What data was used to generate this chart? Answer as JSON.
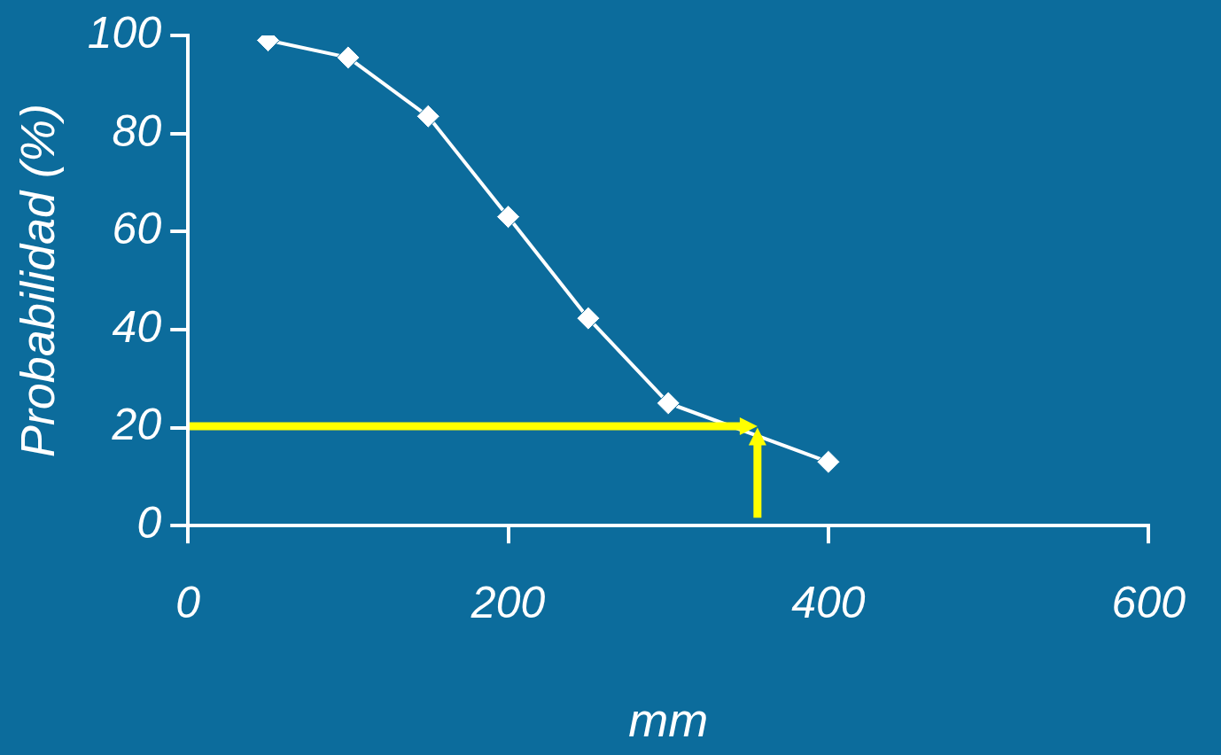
{
  "chart_data": {
    "type": "line",
    "xlabel": "mm",
    "ylabel": "Probabilidad (%)",
    "x": [
      50,
      100,
      150,
      200,
      250,
      300,
      400
    ],
    "series": [
      {
        "color": "#ffffff",
        "values": [
          99,
          95.5,
          83.5,
          63,
          42.3,
          25,
          13
        ]
      }
    ],
    "xlim": [
      0,
      600
    ],
    "xticks": [
      0,
      200,
      400,
      600
    ],
    "ylim": [
      0,
      100
    ],
    "yticks": [
      0,
      20,
      40,
      60,
      80,
      100
    ],
    "grid": false,
    "legend": false,
    "marker": "diamond",
    "line_style": "solid"
  }
}
